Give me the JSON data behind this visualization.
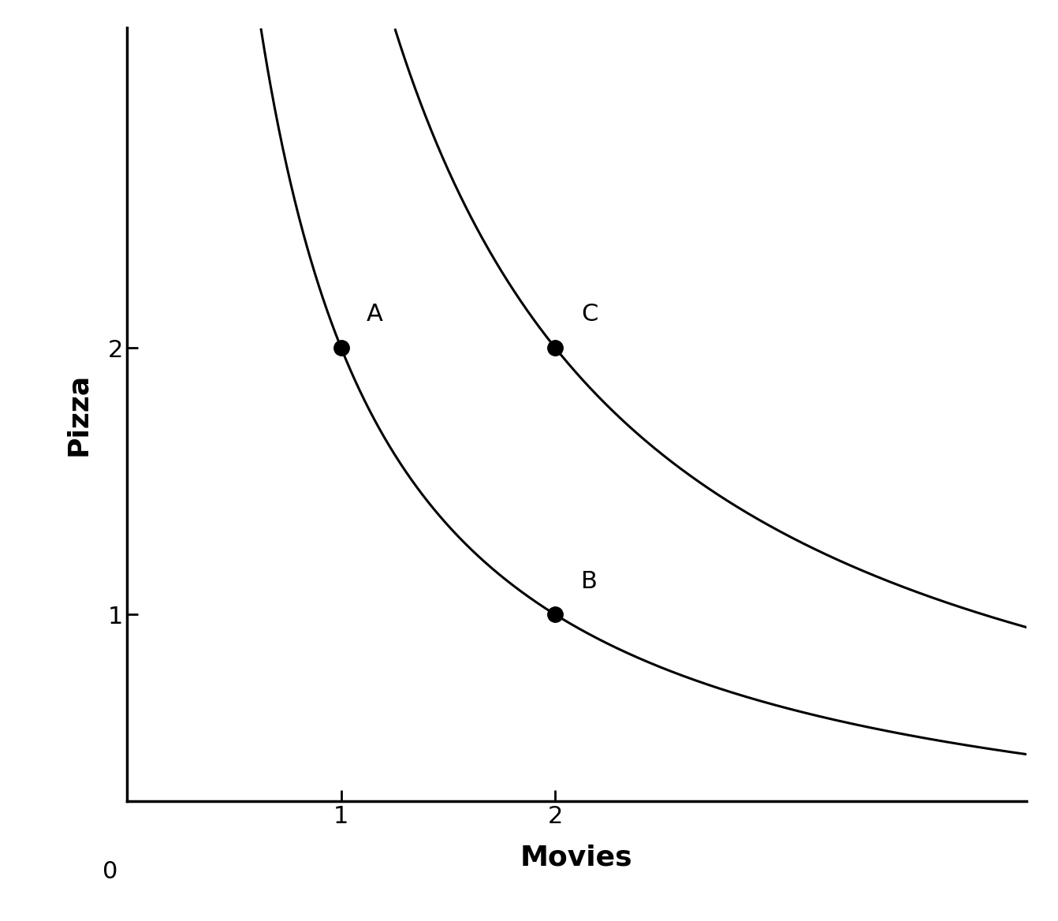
{
  "title": "",
  "xlabel": "Movies",
  "ylabel": "Pizza",
  "xlabel_fontsize": 26,
  "ylabel_fontsize": 26,
  "xlabel_fontweight": "bold",
  "ylabel_fontweight": "bold",
  "tick_fontsize": 22,
  "point_A": [
    1,
    2
  ],
  "point_B": [
    2,
    1
  ],
  "point_C": [
    2,
    2
  ],
  "point_label_fontsize": 22,
  "curve1_k": 2.0,
  "curve2_k": 4.0,
  "xlim": [
    0,
    4.2
  ],
  "ylim_min": 0.3,
  "ylim_max": 3.2,
  "background_color": "#ffffff",
  "curve_color": "#000000",
  "point_color": "#000000",
  "curve_linewidth": 2.2,
  "point_markersize": 14,
  "zero_label_fontsize": 22,
  "spine_linewidth": 2.5
}
